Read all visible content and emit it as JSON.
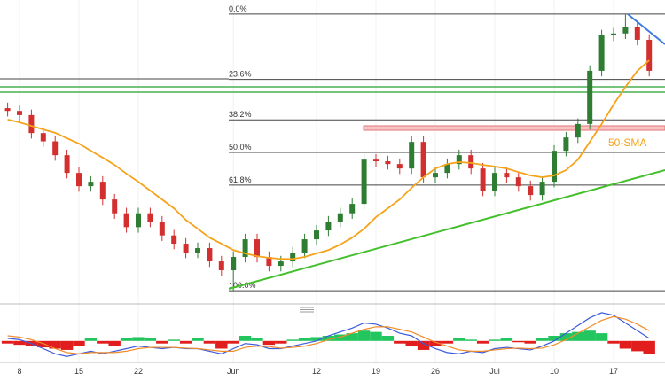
{
  "chart_data": {
    "type": "candlestick",
    "categories": [
      null,
      "8",
      null,
      null,
      null,
      null,
      "15",
      null,
      null,
      null,
      null,
      "22",
      null,
      null,
      null,
      null,
      null,
      null,
      null,
      "Jun",
      null,
      null,
      null,
      null,
      null,
      null,
      "12",
      null,
      null,
      null,
      null,
      "19",
      null,
      null,
      null,
      null,
      "26",
      null,
      null,
      null,
      null,
      "Jul",
      null,
      null,
      null,
      null,
      "10",
      null,
      null,
      null,
      null,
      "17",
      null,
      null,
      null
    ],
    "open": [
      66,
      65,
      63.5,
      57,
      54,
      49,
      42.6,
      37.8,
      39.4,
      33,
      28,
      23,
      28,
      25,
      20,
      17,
      13.8,
      15.4,
      10.6,
      7.4,
      12.2,
      18.6,
      12.2,
      9,
      10.6,
      13.8,
      18.6,
      21.8,
      25,
      28,
      31.4,
      47.4,
      46.8,
      45.8,
      44.2,
      53.8,
      41,
      42.6,
      45.8,
      49,
      44.2,
      36.2,
      42.6,
      41,
      37.8,
      34.6,
      39.4,
      50.6,
      55.4,
      60.3,
      79.5,
      92.3,
      93,
      95.5,
      90.7
    ],
    "high": [
      68,
      67,
      65.5,
      59,
      56,
      51,
      44.6,
      41.4,
      41.4,
      35,
      30,
      30,
      30,
      27,
      22,
      19,
      17.4,
      17.4,
      12.6,
      14.2,
      20.6,
      20.6,
      14.2,
      12.6,
      15.8,
      20.6,
      23.8,
      27,
      30,
      33.4,
      49.4,
      49.4,
      48.8,
      47.8,
      55.8,
      55.8,
      44.6,
      47.8,
      51,
      51,
      46.2,
      44.6,
      44.6,
      43,
      39.8,
      41.4,
      52.6,
      57.4,
      62.3,
      81.5,
      94.3,
      95,
      100,
      97.5,
      92.7
    ],
    "low": [
      63,
      61.5,
      55,
      52,
      47,
      40.6,
      35.8,
      35.8,
      31,
      26,
      21,
      21,
      23,
      18,
      15,
      11.8,
      11.8,
      8.6,
      5.4,
      0,
      10.2,
      10.2,
      7,
      7,
      8.6,
      11.8,
      16.6,
      19.8,
      23,
      26,
      29.4,
      44.8,
      43.8,
      42.2,
      42.2,
      39,
      39,
      40.6,
      43.8,
      42.2,
      34.2,
      34.2,
      39,
      35.8,
      32.6,
      32.6,
      37.4,
      48.6,
      53.4,
      58.3,
      77.5,
      90.3,
      91,
      88.7,
      77.5
    ],
    "close": [
      65,
      63.5,
      57,
      54,
      49,
      42.6,
      37.8,
      39.4,
      33,
      28,
      23,
      28,
      25,
      20,
      17,
      13.8,
      15.4,
      10.6,
      7.4,
      12.2,
      18.6,
      12.2,
      9,
      10.6,
      13.8,
      18.6,
      21.8,
      25,
      28,
      31.4,
      47.4,
      46.8,
      45.8,
      44.2,
      53.8,
      41,
      42.6,
      45.8,
      49,
      44.2,
      36.2,
      42.6,
      41,
      37.8,
      34.6,
      39.4,
      50.6,
      55.4,
      60.3,
      79.5,
      92.3,
      93,
      95.5,
      90.7,
      79.5
    ],
    "up_color": "#2e7d32",
    "down_color": "#d32f2f",
    "ylim": [
      -3.8,
      105.1
    ],
    "fibonacci": {
      "high": 100,
      "low": 0,
      "color": "#444444",
      "levels": [
        {
          "value": 0,
          "label": "0.0%"
        },
        {
          "value": 23.6,
          "label": "23.6%"
        },
        {
          "value": 38.2,
          "label": "38.2%"
        },
        {
          "value": 50,
          "label": "50.0%"
        },
        {
          "value": 61.8,
          "label": "61.8%"
        },
        {
          "value": 100,
          "label": "100.0%"
        }
      ]
    },
    "overlays": [
      {
        "name": "50-SMA",
        "color": "#f5a31a",
        "values": [
          61.9,
          60.9,
          59.6,
          58.3,
          57.1,
          55.1,
          53.2,
          50.6,
          48.1,
          45.5,
          42.3,
          39.4,
          36.2,
          33,
          29.8,
          25.6,
          22.4,
          19.2,
          17,
          14.7,
          13.5,
          12.5,
          11.9,
          11.5,
          11.5,
          12.2,
          13.5,
          14.7,
          16.7,
          19.2,
          22.4,
          26.6,
          29.8,
          33,
          37.2,
          41,
          44.2,
          45.8,
          46.5,
          46.2,
          45.5,
          44.9,
          44.2,
          42.9,
          41.7,
          41,
          41.7,
          43.6,
          47.4,
          53.8,
          60.3,
          67.3,
          73.7,
          79.5,
          83.3
        ]
      }
    ],
    "indicator": {
      "ylim": [
        -0.8,
        1.2
      ],
      "up_color": "#22c55e",
      "down_color": "#e11d1d",
      "histogram": [
        -0.1,
        -0.15,
        -0.2,
        -0.25,
        -0.3,
        -0.35,
        -0.2,
        0.1,
        -0.1,
        -0.2,
        0.1,
        0.15,
        0.1,
        -0.1,
        0.05,
        -0.1,
        0.1,
        -0.1,
        -0.3,
        -0.1,
        0.2,
        0.1,
        -0.15,
        -0.1,
        0.05,
        0.1,
        0.15,
        0.2,
        0.25,
        0.3,
        0.4,
        0.35,
        0.2,
        -0.1,
        -0.2,
        -0.35,
        -0.2,
        -0.1,
        0.1,
        0.05,
        -0.1,
        0.05,
        0.1,
        -0.05,
        -0.1,
        0.1,
        0.2,
        0.3,
        0.35,
        0.4,
        0.3,
        -0.1,
        -0.3,
        -0.4,
        -0.5
      ],
      "lines": [
        {
          "color": "#3b5bdb",
          "values": [
            0.1,
            0.05,
            -0.1,
            -0.3,
            -0.5,
            -0.6,
            -0.5,
            -0.4,
            -0.5,
            -0.4,
            -0.3,
            -0.2,
            -0.25,
            -0.3,
            -0.25,
            -0.3,
            -0.3,
            -0.4,
            -0.5,
            -0.3,
            -0.1,
            -0.15,
            -0.3,
            -0.3,
            -0.2,
            -0.1,
            0,
            0.2,
            0.35,
            0.5,
            0.7,
            0.65,
            0.5,
            0.3,
            0.2,
            -0.1,
            -0.3,
            -0.45,
            -0.5,
            -0.4,
            -0.45,
            -0.3,
            -0.25,
            -0.3,
            -0.35,
            -0.2,
            0,
            0.3,
            0.6,
            0.9,
            1.1,
            1.0,
            0.7,
            0.4,
            0.1
          ]
        },
        {
          "color": "#f08c28",
          "values": [
            0.2,
            0.15,
            0.05,
            -0.1,
            -0.3,
            -0.45,
            -0.5,
            -0.45,
            -0.45,
            -0.45,
            -0.4,
            -0.3,
            -0.25,
            -0.25,
            -0.25,
            -0.28,
            -0.3,
            -0.35,
            -0.4,
            -0.4,
            -0.25,
            -0.2,
            -0.22,
            -0.28,
            -0.25,
            -0.2,
            -0.1,
            0.05,
            0.15,
            0.3,
            0.45,
            0.55,
            0.55,
            0.45,
            0.35,
            0.15,
            -0.05,
            -0.2,
            -0.35,
            -0.4,
            -0.4,
            -0.35,
            -0.3,
            -0.28,
            -0.3,
            -0.28,
            -0.15,
            0.05,
            0.3,
            0.55,
            0.8,
            0.95,
            0.85,
            0.65,
            0.4
          ]
        }
      ]
    }
  }
}
